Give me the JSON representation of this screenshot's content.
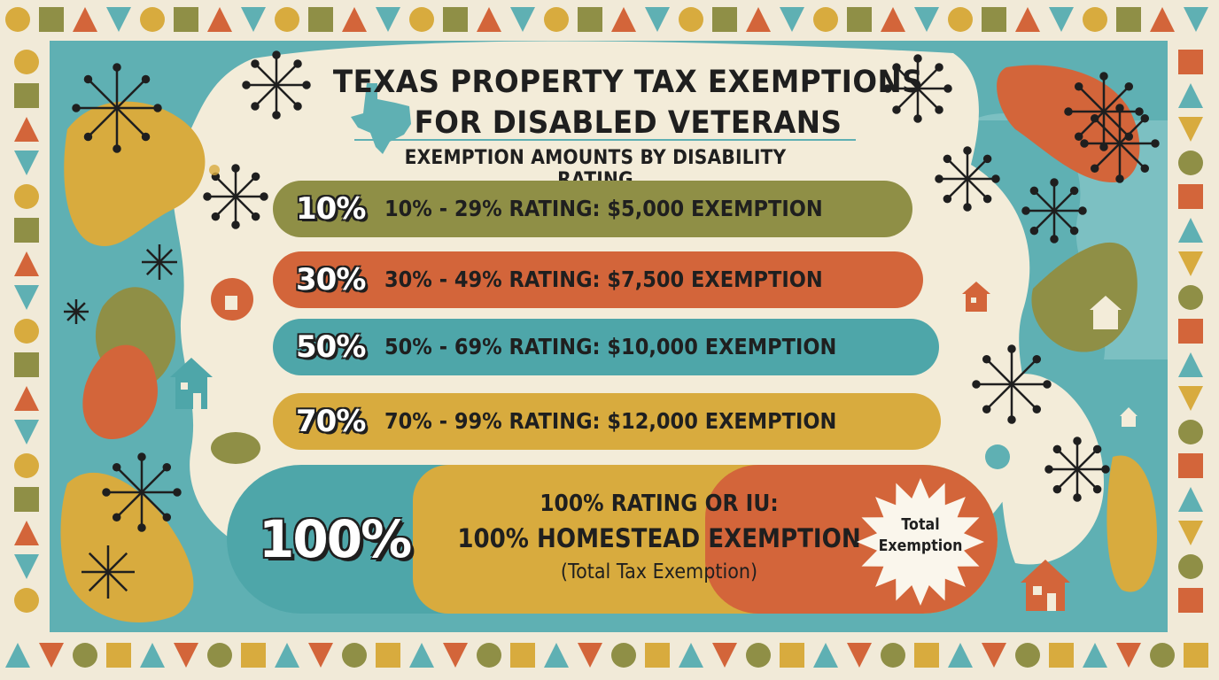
{
  "title": {
    "line1": "TEXAS PROPERTY TAX EXEMPTIONS",
    "line2": "FOR DISABLED VETERANS"
  },
  "subtitle": "EXEMPTION AMOUNTS BY DISABILITY RATING",
  "tiers": [
    {
      "badge": "10%",
      "text": "10% - 29% RATING: $5,000 EXEMPTION",
      "color": "#8f8f46"
    },
    {
      "badge": "30%",
      "text": "30% - 49% RATING: $7,500 EXEMPTION",
      "color": "#d3653a"
    },
    {
      "badge": "50%",
      "text": "50% - 69% RATING: $10,000 EXEMPTION",
      "color": "#4ea6a9"
    },
    {
      "badge": "70%",
      "text": "70% - 99% RATING: $12,000 EXEMPTION",
      "color": "#d8ab3e"
    }
  ],
  "full_exemption": {
    "badge": "100%",
    "line1": "100% RATING OR IU:",
    "line2": "100% HOMESTEAD EXEMPTION",
    "line3": "(Total Tax Exemption)",
    "burst_line1": "Total",
    "burst_line2": "Exemption"
  },
  "palette": {
    "teal": "#5fb0b3",
    "olive": "#8f8f46",
    "orange": "#d3653a",
    "mustard": "#d8ab3e",
    "cream": "#f1ead8",
    "ink": "#1f1f1f"
  },
  "icons": [
    "texas-map-icon",
    "starburst-icon",
    "house-icon"
  ]
}
